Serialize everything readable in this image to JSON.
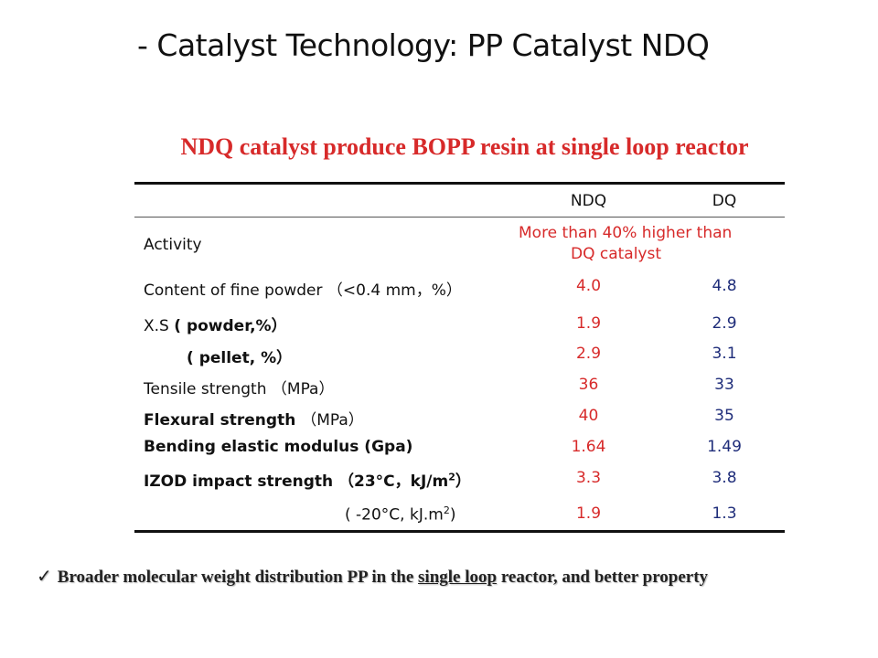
{
  "title": "- Catalyst Technology: PP Catalyst NDQ",
  "subtitle": "NDQ catalyst produce BOPP resin at single loop reactor",
  "table": {
    "headers": {
      "ndq": "NDQ",
      "dq": "DQ"
    },
    "activity": {
      "label": "Activity",
      "ndq_line1": "More than 40% higher than",
      "ndq_line2": "DQ catalyst"
    },
    "fine_powder": {
      "label": "Content of fine powder （<0.4 mm，%）",
      "ndq": "4.0",
      "dq": "4.8"
    },
    "xs_powder": {
      "label_prefix": "X.S ",
      "label_rest": "( powder,%）",
      "ndq": "1.9",
      "dq": "2.9"
    },
    "xs_pellet": {
      "label": "( pellet, %）",
      "ndq": "2.9",
      "dq": "3.1"
    },
    "tensile": {
      "label": "Tensile strength （MPa）",
      "ndq": "36",
      "dq": "33"
    },
    "flexural": {
      "label_main": "Flexural strength ",
      "label_unit": "（MPa）",
      "ndq": "40",
      "dq": "35"
    },
    "bending": {
      "label": "Bending elastic modulus (Gpa)",
      "ndq": "1.64",
      "dq": "1.49"
    },
    "izod_23": {
      "label_main": "IZOD impact strength ",
      "label_unit": "（23°C，kJ/m",
      "sup": "2",
      "label_close": "）",
      "ndq": "3.3",
      "dq": "3.8"
    },
    "izod_minus20": {
      "label_main": "( -20°C, kJ.m",
      "sup": "2",
      "label_close": ")",
      "ndq": "1.9",
      "dq": "1.3"
    }
  },
  "footer": {
    "check": "✓",
    "text_before": "Broader molecular weight distribution PP in the ",
    "underlined": "single loop",
    "text_after": " reactor, and better property"
  }
}
